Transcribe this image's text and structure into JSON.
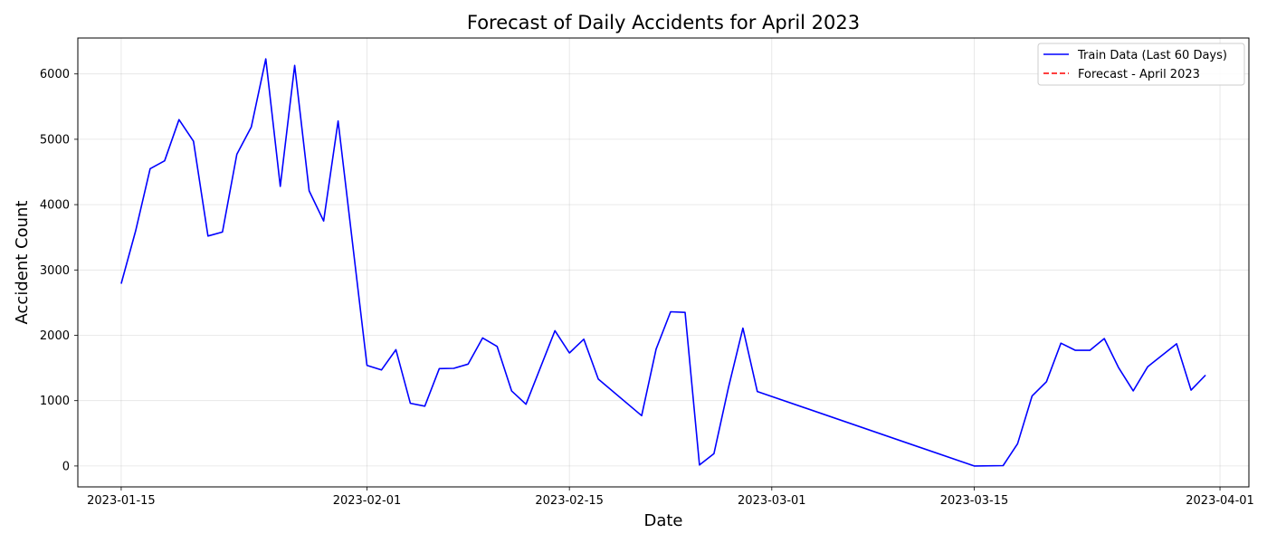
{
  "chart_data": {
    "type": "line",
    "title": "Forecast of Daily Accidents for April 2023",
    "xlabel": "Date",
    "ylabel": "Accident Count",
    "xlim": [
      "2023-01-12",
      "2023-04-03"
    ],
    "ylim": [
      -320,
      6550
    ],
    "xticks": [
      "2023-01-15",
      "2023-02-01",
      "2023-02-15",
      "2023-03-01",
      "2023-03-15",
      "2023-04-01"
    ],
    "yticks": [
      0,
      1000,
      2000,
      3000,
      4000,
      5000,
      6000
    ],
    "grid": true,
    "legend": {
      "position": "top-right",
      "entries": [
        {
          "label": "Train Data (Last 60 Days)",
          "color": "#0000ff",
          "style": "solid"
        },
        {
          "label": "Forecast - April 2023",
          "color": "#ff0000",
          "style": "dashed"
        }
      ]
    },
    "series": [
      {
        "name": "Train Data (Last 60 Days)",
        "color": "#0000ff",
        "style": "solid",
        "points": [
          [
            "2023-01-15",
            2790
          ],
          [
            "2023-01-16",
            3600
          ],
          [
            "2023-01-17",
            4550
          ],
          [
            "2023-01-18",
            4670
          ],
          [
            "2023-01-19",
            5300
          ],
          [
            "2023-01-20",
            4970
          ],
          [
            "2023-01-21",
            3520
          ],
          [
            "2023-01-22",
            3580
          ],
          [
            "2023-01-23",
            4770
          ],
          [
            "2023-01-24",
            5190
          ],
          [
            "2023-01-25",
            6230
          ],
          [
            "2023-01-26",
            4280
          ],
          [
            "2023-01-27",
            6130
          ],
          [
            "2023-01-28",
            4210
          ],
          [
            "2023-01-29",
            3750
          ],
          [
            "2023-01-30",
            5280
          ],
          [
            "2023-02-01",
            1540
          ],
          [
            "2023-02-02",
            1470
          ],
          [
            "2023-02-03",
            1780
          ],
          [
            "2023-02-04",
            960
          ],
          [
            "2023-02-05",
            915
          ],
          [
            "2023-02-06",
            1490
          ],
          [
            "2023-02-07",
            1495
          ],
          [
            "2023-02-08",
            1560
          ],
          [
            "2023-02-09",
            1960
          ],
          [
            "2023-02-10",
            1830
          ],
          [
            "2023-02-11",
            1150
          ],
          [
            "2023-02-12",
            945
          ],
          [
            "2023-02-14",
            2070
          ],
          [
            "2023-02-15",
            1730
          ],
          [
            "2023-02-16",
            1940
          ],
          [
            "2023-02-17",
            1330
          ],
          [
            "2023-02-20",
            770
          ],
          [
            "2023-02-21",
            1790
          ],
          [
            "2023-02-22",
            2360
          ],
          [
            "2023-02-23",
            2350
          ],
          [
            "2023-02-24",
            15
          ],
          [
            "2023-02-25",
            190
          ],
          [
            "2023-02-26",
            1200
          ],
          [
            "2023-02-27",
            2110
          ],
          [
            "2023-02-28",
            1140
          ],
          [
            "2023-03-15",
            0
          ],
          [
            "2023-03-17",
            5
          ],
          [
            "2023-03-18",
            340
          ],
          [
            "2023-03-19",
            1070
          ],
          [
            "2023-03-20",
            1290
          ],
          [
            "2023-03-21",
            1880
          ],
          [
            "2023-03-22",
            1770
          ],
          [
            "2023-03-23",
            1770
          ],
          [
            "2023-03-24",
            1950
          ],
          [
            "2023-03-25",
            1500
          ],
          [
            "2023-03-26",
            1150
          ],
          [
            "2023-03-27",
            1520
          ],
          [
            "2023-03-29",
            1870
          ],
          [
            "2023-03-30",
            1160
          ],
          [
            "2023-03-31",
            1390
          ]
        ]
      },
      {
        "name": "Forecast - April 2023",
        "color": "#ff0000",
        "style": "dashed",
        "points": []
      }
    ]
  }
}
